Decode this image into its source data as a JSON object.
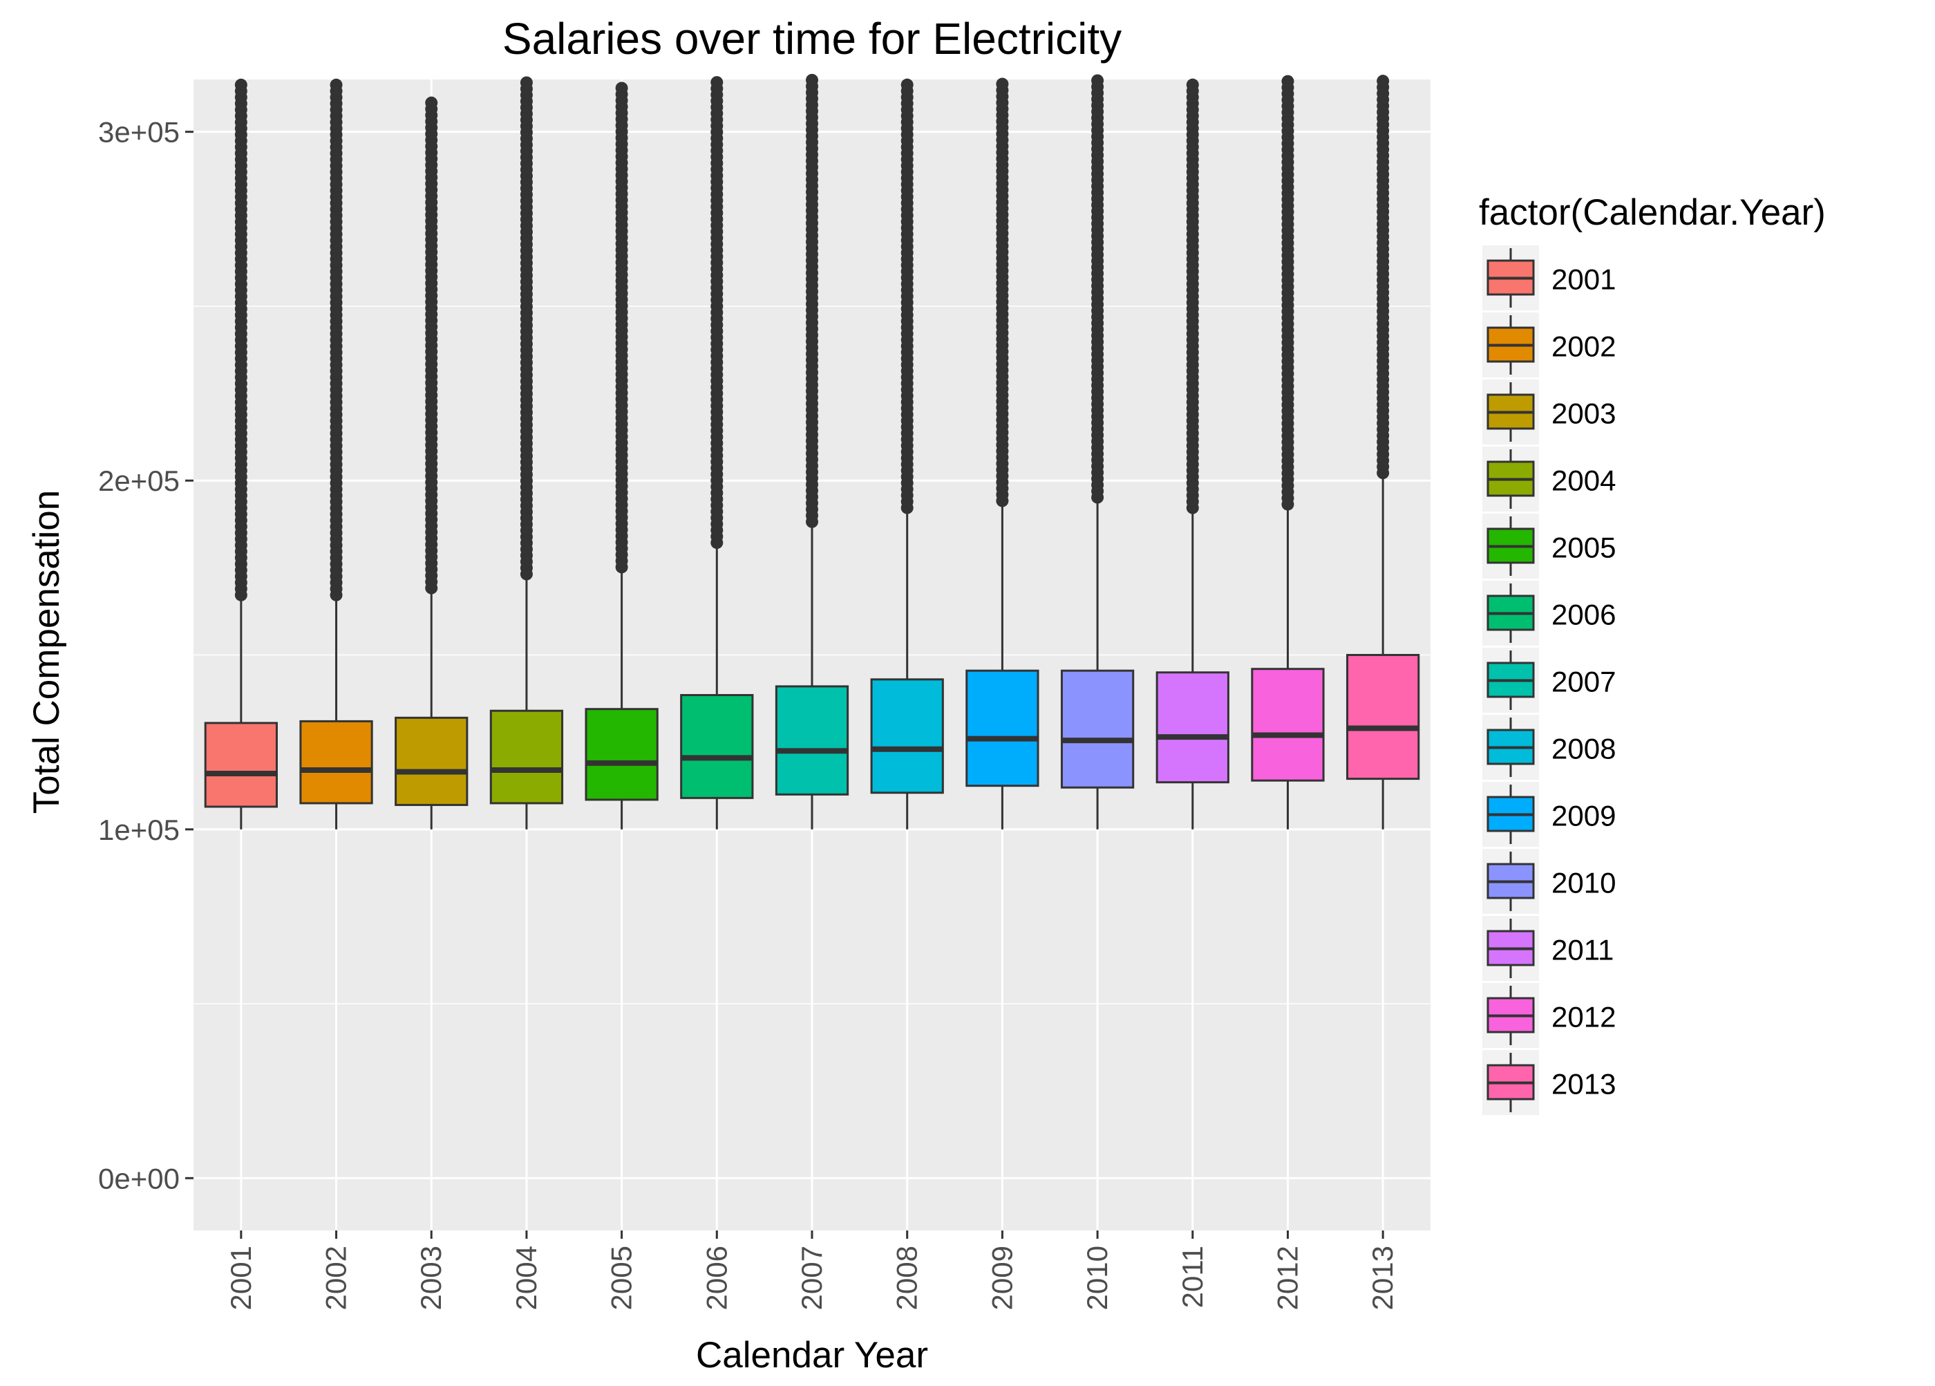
{
  "chart_data": {
    "type": "box",
    "title": "Salaries over time for Electricity",
    "xlabel": "Calendar Year",
    "ylabel": "Total Compensation",
    "ylim": [
      -15000,
      315000
    ],
    "yticks": [
      0,
      100000,
      200000,
      300000
    ],
    "ytick_labels": [
      "0e+00",
      "1e+05",
      "2e+05",
      "3e+05"
    ],
    "grid": true,
    "legend": {
      "title": "factor(Calendar.Year)",
      "position": "right"
    },
    "categories": [
      "2001",
      "2002",
      "2003",
      "2004",
      "2005",
      "2006",
      "2007",
      "2008",
      "2009",
      "2010",
      "2011",
      "2012",
      "2013"
    ],
    "boxes": [
      {
        "label": "2001",
        "color": "#F8766D",
        "lower_whisker": 100000,
        "q1": 106500,
        "median": 116000,
        "q3": 130500,
        "upper_whisker": 166000,
        "outlier_min": 166000,
        "outlier_max": 315000
      },
      {
        "label": "2002",
        "color": "#E18A00",
        "lower_whisker": 100000,
        "q1": 107500,
        "median": 117000,
        "q3": 131000,
        "upper_whisker": 166000,
        "outlier_min": 166000,
        "outlier_max": 315000
      },
      {
        "label": "2003",
        "color": "#BE9C00",
        "lower_whisker": 100000,
        "q1": 107000,
        "median": 116500,
        "q3": 132000,
        "upper_whisker": 168000,
        "outlier_min": 168000,
        "outlier_max": 310000
      },
      {
        "label": "2004",
        "color": "#8CAB00",
        "lower_whisker": 100000,
        "q1": 107500,
        "median": 117000,
        "q3": 134000,
        "upper_whisker": 172000,
        "outlier_min": 172000,
        "outlier_max": 315000
      },
      {
        "label": "2005",
        "color": "#24B700",
        "lower_whisker": 100000,
        "q1": 108500,
        "median": 119000,
        "q3": 134500,
        "upper_whisker": 174000,
        "outlier_min": 174000,
        "outlier_max": 313000
      },
      {
        "label": "2006",
        "color": "#00BE70",
        "lower_whisker": 100000,
        "q1": 109000,
        "median": 120500,
        "q3": 138500,
        "upper_whisker": 181000,
        "outlier_min": 181000,
        "outlier_max": 315000
      },
      {
        "label": "2007",
        "color": "#00C1AB",
        "lower_whisker": 100000,
        "q1": 110000,
        "median": 122500,
        "q3": 141000,
        "upper_whisker": 187000,
        "outlier_min": 187000,
        "outlier_max": 315000
      },
      {
        "label": "2008",
        "color": "#00BBDA",
        "lower_whisker": 100000,
        "q1": 110500,
        "median": 123000,
        "q3": 143000,
        "upper_whisker": 191000,
        "outlier_min": 191000,
        "outlier_max": 315000
      },
      {
        "label": "2009",
        "color": "#00ACFC",
        "lower_whisker": 100000,
        "q1": 112500,
        "median": 126000,
        "q3": 145500,
        "upper_whisker": 193000,
        "outlier_min": 193000,
        "outlier_max": 315000
      },
      {
        "label": "2010",
        "color": "#8B93FF",
        "lower_whisker": 100000,
        "q1": 112000,
        "median": 125500,
        "q3": 145500,
        "upper_whisker": 194000,
        "outlier_min": 194000,
        "outlier_max": 315000
      },
      {
        "label": "2011",
        "color": "#D575FE",
        "lower_whisker": 100000,
        "q1": 113500,
        "median": 126500,
        "q3": 145000,
        "upper_whisker": 191000,
        "outlier_min": 191000,
        "outlier_max": 315000
      },
      {
        "label": "2012",
        "color": "#F962DD",
        "lower_whisker": 100000,
        "q1": 114000,
        "median": 127000,
        "q3": 146000,
        "upper_whisker": 192000,
        "outlier_min": 192000,
        "outlier_max": 315000
      },
      {
        "label": "2013",
        "color": "#FF65AC",
        "lower_whisker": 100000,
        "q1": 114500,
        "median": 129000,
        "q3": 150000,
        "upper_whisker": 201000,
        "outlier_min": 201000,
        "outlier_max": 315000
      }
    ]
  }
}
